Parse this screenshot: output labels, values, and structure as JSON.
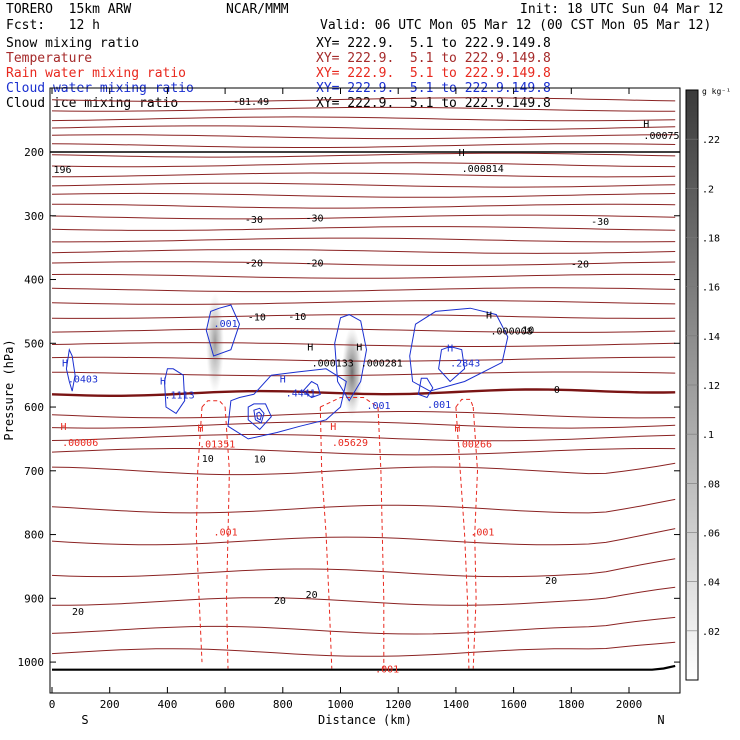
{
  "header": {
    "model": "TORERO  15km ARW",
    "center": "NCAR/MMM",
    "init": "Init: 18 UTC Sun 04 Mar 12",
    "fcst": "Fcst:   12 h",
    "valid": "Valid: 06 UTC Mon 05 Mar 12 (00 CST Mon 05 Mar 12)"
  },
  "legend": [
    {
      "label": "Snow mixing ratio",
      "xy": "XY= 222.9.  5.1 to 222.9.149.8",
      "color": "#000000"
    },
    {
      "label": "Temperature",
      "xy": "XY= 222.9.  5.1 to 222.9.149.8",
      "color": "#a52a2a"
    },
    {
      "label": "Rain water mixing ratio",
      "xy": "XY= 222.9.  5.1 to 222.9.149.8",
      "color": "#e8281e"
    },
    {
      "label": "Cloud water mixing ratio",
      "xy": "XY= 222.9.  5.1 to 222.9.149.8",
      "color": "#1a2fd0"
    },
    {
      "label": "Cloud ice mixing ratio",
      "xy": "XY= 222.9.  5.1 to 222.9.149.8",
      "color": "#000000"
    }
  ],
  "chart_data": {
    "type": "cross-section",
    "xlabel": "Distance (km)",
    "ylabel": "Pressure (hPa)",
    "xlim": [
      0,
      2180
    ],
    "ylim_hpa": [
      1050,
      100
    ],
    "x_ticks": [
      "0",
      "200",
      "400",
      "600",
      "800",
      "1000",
      "1200",
      "1400",
      "1600",
      "1800",
      "2000"
    ],
    "y_ticks": [
      "200",
      "300",
      "400",
      "500",
      "600",
      "700",
      "800",
      "900",
      "1000"
    ],
    "end_labels": {
      "left": "S",
      "right": "N"
    },
    "colorbar": {
      "unit": "g kg⁻¹",
      "ticks": [
        ".02",
        ".04",
        ".06",
        ".08",
        ".1",
        ".12",
        ".14",
        ".16",
        ".18",
        ".2",
        ".22"
      ],
      "max": 0.24
    },
    "temperature_labels": [
      {
        "text": "-81.49",
        "x": 690,
        "p": 120
      },
      {
        "text": "-30",
        "x": 700,
        "p": 305
      },
      {
        "text": "-30",
        "x": 910,
        "p": 303
      },
      {
        "text": "-30",
        "x": 1900,
        "p": 308
      },
      {
        "text": "-20",
        "x": 700,
        "p": 373
      },
      {
        "text": "-20",
        "x": 910,
        "p": 373
      },
      {
        "text": "-20",
        "x": 1830,
        "p": 375
      },
      {
        "text": "-10",
        "x": 710,
        "p": 458
      },
      {
        "text": "-10",
        "x": 850,
        "p": 457
      },
      {
        "text": "10",
        "x": 540,
        "p": 680
      },
      {
        "text": "10",
        "x": 720,
        "p": 681
      },
      {
        "text": "20",
        "x": 90,
        "p": 920
      },
      {
        "text": "20",
        "x": 790,
        "p": 903
      },
      {
        "text": "20",
        "x": 900,
        "p": 893
      },
      {
        "text": "20",
        "x": 1730,
        "p": 871
      }
    ],
    "freezing_level_label": {
      "text": "0",
      "x": 1750,
      "p": 572
    },
    "max_labels": [
      {
        "text": ".0403",
        "x": 55,
        "p": 555,
        "color": "#1a2fd0"
      },
      {
        "text": ".1113",
        "x": 390,
        "p": 580,
        "color": "#1a2fd0"
      },
      {
        "text": ".4441",
        "x": 810,
        "p": 577,
        "color": "#1a2fd0"
      },
      {
        "text": ".2843",
        "x": 1380,
        "p": 530,
        "color": "#1a2fd0"
      },
      {
        "text": ".000133",
        "x": 900,
        "p": 530,
        "color": "#000000"
      },
      {
        "text": ".000281",
        "x": 1070,
        "p": 530,
        "color": "#000000"
      },
      {
        "text": ".000008",
        "x": 1520,
        "p": 480,
        "color": "#000000"
      },
      {
        "text": ".000814",
        "x": 1420,
        "p": 225,
        "color": "#000000"
      },
      {
        "text": ".00075",
        "x": 2050,
        "p": 173,
        "color": "#000000"
      },
      {
        "text": ".00006",
        "x": 35,
        "p": 655,
        "color": "#e8281e"
      },
      {
        "text": ".01351",
        "x": 510,
        "p": 657,
        "color": "#e8281e"
      },
      {
        "text": ".05629",
        "x": 970,
        "p": 655,
        "color": "#e8281e"
      },
      {
        "text": ".00266",
        "x": 1400,
        "p": 657,
        "color": "#e8281e"
      }
    ],
    "contour_labels": [
      {
        "text": ".001",
        "x": 560,
        "p": 468,
        "color": "#1a2fd0"
      },
      {
        "text": ".001",
        "x": 1090,
        "p": 597,
        "color": "#1a2fd0"
      },
      {
        "text": ".001",
        "x": 1300,
        "p": 595,
        "color": "#1a2fd0"
      },
      {
        "text": ".001",
        "x": 560,
        "p": 795,
        "color": "#e8281e"
      },
      {
        "text": ".001",
        "x": 1450,
        "p": 795,
        "color": "#e8281e"
      },
      {
        "text": ".001",
        "x": 1120,
        "p": 1010,
        "color": "#e8281e"
      },
      {
        "text": "196",
        "x": 5,
        "p": 227,
        "color": "#000000"
      },
      {
        "text": "10",
        "x": 1630,
        "p": 478,
        "color": "#000000"
      }
    ],
    "h_marks": [
      {
        "x": 45,
        "p": 530,
        "color": "#1a2fd0"
      },
      {
        "x": 385,
        "p": 558,
        "color": "#1a2fd0"
      },
      {
        "x": 800,
        "p": 555,
        "color": "#1a2fd0"
      },
      {
        "x": 1380,
        "p": 507,
        "color": "#1a2fd0"
      },
      {
        "x": 895,
        "p": 505,
        "color": "#000000"
      },
      {
        "x": 1065,
        "p": 505,
        "color": "#000000"
      },
      {
        "x": 1515,
        "p": 455,
        "color": "#000000"
      },
      {
        "x": 1420,
        "p": 200,
        "color": "#000000"
      },
      {
        "x": 2060,
        "p": 155,
        "color": "#000000"
      },
      {
        "x": 40,
        "p": 630,
        "color": "#e8281e"
      },
      {
        "x": 515,
        "p": 632,
        "color": "#e8281e"
      },
      {
        "x": 975,
        "p": 630,
        "color": "#e8281e"
      },
      {
        "x": 1405,
        "p": 632,
        "color": "#e8281e"
      }
    ]
  }
}
